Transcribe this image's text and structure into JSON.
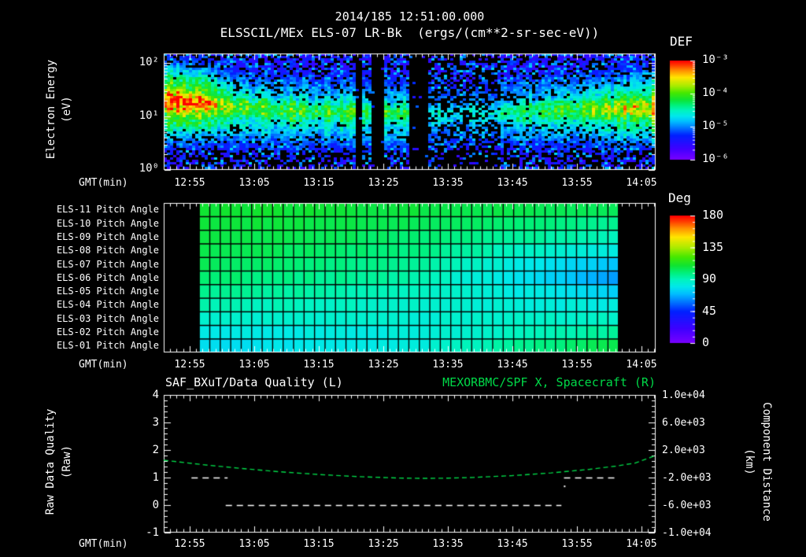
{
  "header": {
    "line1": "2014/185 12:51:00.000",
    "line2": "ELSSCIL/MEx ELS-07 LR-Bk  (ergs/(cm**2-sr-sec-eV))"
  },
  "colors": {
    "background": "#000000",
    "text": "#ffffff",
    "plot_green": "#00d948",
    "frame": "#ffffff"
  },
  "axes": {
    "gmt_label": "GMT(min)",
    "time_labels": [
      "12:55",
      "13:05",
      "13:15",
      "13:25",
      "13:35",
      "13:45",
      "13:55",
      "14:05"
    ],
    "time_start_gmt": "12:51",
    "time_span_minutes": 76.2,
    "energy_ticks": [
      "10²",
      "10¹",
      "10⁰"
    ]
  },
  "chart_data": [
    {
      "type": "heatmap",
      "name": "electron-energy-spectrogram",
      "title": "ELSSCIL/MEx ELS-07 LR-Bk",
      "units": "ergs/(cm**2-sr-sec-eV)",
      "x_axis": {
        "label": "GMT(min)",
        "start": "12:51",
        "tick_labels": [
          "12:55",
          "13:05",
          "13:15",
          "13:25",
          "13:35",
          "13:45",
          "13:55",
          "14:05"
        ]
      },
      "y_axis": {
        "label_line1": "Electron Energy",
        "label_line2": "(eV)",
        "scale": "log",
        "range_ev": [
          1,
          150
        ],
        "tick_labels": [
          "10⁰",
          "10¹",
          "10²"
        ]
      },
      "colorbar": {
        "label": "DEF",
        "scale": "log",
        "range_log10": [
          -6,
          -3
        ],
        "tick_labels": [
          "10⁻³",
          "10⁻⁴",
          "10⁻⁵",
          "10⁻⁶"
        ]
      },
      "band_center_log10ev": [
        [
          0,
          1.3
        ],
        [
          6,
          1.26
        ],
        [
          12,
          1.16
        ],
        [
          20,
          1.1
        ],
        [
          30,
          1.06
        ],
        [
          40,
          1.02
        ],
        [
          50,
          1.05
        ],
        [
          60,
          1.1
        ],
        [
          70,
          1.14
        ],
        [
          76,
          1.16
        ]
      ],
      "intensity_profile": [
        [
          0,
          1.0
        ],
        [
          1.5,
          0.99
        ],
        [
          3,
          0.95
        ],
        [
          5,
          0.9
        ],
        [
          7,
          0.84
        ],
        [
          9,
          0.77
        ],
        [
          11,
          0.7
        ],
        [
          13,
          0.66
        ],
        [
          16,
          0.64
        ],
        [
          20,
          0.63
        ],
        [
          24,
          0.62
        ],
        [
          28,
          0.63
        ],
        [
          32,
          0.63
        ],
        [
          36,
          0.62
        ],
        [
          40,
          0.55
        ],
        [
          42,
          0.47
        ],
        [
          45,
          0.44
        ],
        [
          48,
          0.45
        ],
        [
          51,
          0.48
        ],
        [
          54,
          0.53
        ],
        [
          57,
          0.58
        ],
        [
          60,
          0.62
        ],
        [
          63,
          0.65
        ],
        [
          66,
          0.68
        ],
        [
          69,
          0.72
        ],
        [
          71,
          0.76
        ],
        [
          73,
          0.81
        ],
        [
          76,
          0.86
        ]
      ],
      "intensity_note": "normalized 0-1; 1 = DEF 1e-3 (red), 0 = DEF 1e-6 (violet)",
      "dropouts_min": [
        [
          29.8,
          30.5
        ],
        [
          32.3,
          34.2
        ],
        [
          37.8,
          41.0
        ]
      ],
      "dim_interval_min": [
        41,
        52
      ]
    },
    {
      "type": "heatmap",
      "name": "pitch-angle-panels",
      "columns": 40,
      "data_extent_min": [
        5.5,
        70.4
      ],
      "colorbar": {
        "label": "Deg",
        "range": [
          0,
          180
        ],
        "tick_labels": [
          "180",
          "135",
          "90",
          "45",
          "0"
        ]
      },
      "rows": [
        {
          "label": "ELS-11 Pitch Angle",
          "deg": [
            110,
            108,
            104
          ]
        },
        {
          "label": "ELS-10 Pitch Angle",
          "deg": [
            109,
            105,
            97
          ]
        },
        {
          "label": "ELS-09 Pitch Angle",
          "deg": [
            108,
            102,
            90
          ]
        },
        {
          "label": "ELS-08 Pitch Angle",
          "deg": [
            107,
            99,
            81
          ]
        },
        {
          "label": "ELS-07 Pitch Angle",
          "deg": [
            104,
            96,
            71
          ]
        },
        {
          "label": "ELS-06 Pitch Angle",
          "deg": [
            102,
            93,
            66
          ]
        },
        {
          "label": "ELS-05 Pitch Angle",
          "deg": [
            97,
            90,
            75
          ]
        },
        {
          "label": "ELS-04 Pitch Angle",
          "deg": [
            92,
            87,
            82
          ]
        },
        {
          "label": "ELS-03 Pitch Angle",
          "deg": [
            87,
            85,
            88
          ]
        },
        {
          "label": "ELS-02 Pitch Angle",
          "deg": [
            82,
            83,
            95
          ]
        },
        {
          "label": "ELS-01 Pitch Angle",
          "deg": [
            78,
            82,
            107
          ]
        }
      ]
    },
    {
      "type": "line",
      "name": "quality-and-distance",
      "titles": {
        "left": "SAF_BXuT/Data Quality (L)",
        "right": "MEXORBMC/SPF X, Spacecraft (R)"
      },
      "left_axis": {
        "label_line1": "Raw Data Quality",
        "label_line2": "(Raw)",
        "range": [
          -1,
          4
        ],
        "tick_labels": [
          "4",
          "3",
          "2",
          "1",
          "0",
          "-1"
        ]
      },
      "right_axis": {
        "label_line1": "Component Distance",
        "label_line2": "(km)",
        "range": [
          -10000,
          10000
        ],
        "tick_labels": [
          "1.0e+04",
          "6.0e+03",
          "2.0e+03",
          "-2.0e+03",
          "-6.0e+03",
          "-1.0e+04"
        ]
      },
      "series": [
        {
          "name": "SAF_BXuT/Data Quality",
          "axis": "left",
          "color": "#ffffff",
          "style": "dashed",
          "segments": [
            {
              "value": 1,
              "t_min": [
                4.3,
                9.9
              ]
            },
            {
              "value": 0,
              "t_min": [
                9.6,
                61.6
              ]
            },
            {
              "value": 1,
              "t_min": [
                62.0,
                70.2
              ]
            }
          ],
          "isolated_point": {
            "t_min": 62.1,
            "value": 0.68
          }
        },
        {
          "name": "MEXORBMC/SPF X, Spacecraft",
          "axis": "right",
          "color": "#00d948",
          "style": "dashed",
          "points_km": [
            [
              0,
              520
            ],
            [
              6,
              -120
            ],
            [
              12,
              -680
            ],
            [
              18,
              -1160
            ],
            [
              24,
              -1560
            ],
            [
              30,
              -1860
            ],
            [
              36,
              -2060
            ],
            [
              40,
              -2120
            ],
            [
              44,
              -2090
            ],
            [
              48,
              -1980
            ],
            [
              54,
              -1720
            ],
            [
              60,
              -1330
            ],
            [
              66,
              -800
            ],
            [
              70,
              -340
            ],
            [
              73,
              100
            ],
            [
              76.2,
              1200
            ]
          ]
        }
      ]
    }
  ],
  "render": {
    "seed": 1234,
    "colormap_stops": [
      [
        0,
        122,
        0,
        255
      ],
      [
        20,
        64,
        0,
        255
      ],
      [
        45,
        0,
        32,
        255
      ],
      [
        60,
        0,
        128,
        255
      ],
      [
        70,
        0,
        190,
        255
      ],
      [
        80,
        0,
        232,
        235
      ],
      [
        90,
        0,
        244,
        190
      ],
      [
        100,
        0,
        240,
        120
      ],
      [
        110,
        16,
        228,
        48
      ],
      [
        122,
        70,
        232,
        0
      ],
      [
        135,
        170,
        235,
        0
      ],
      [
        150,
        255,
        230,
        0
      ],
      [
        163,
        255,
        140,
        0
      ],
      [
        172,
        255,
        60,
        0
      ],
      [
        180,
        255,
        0,
        0
      ]
    ]
  }
}
